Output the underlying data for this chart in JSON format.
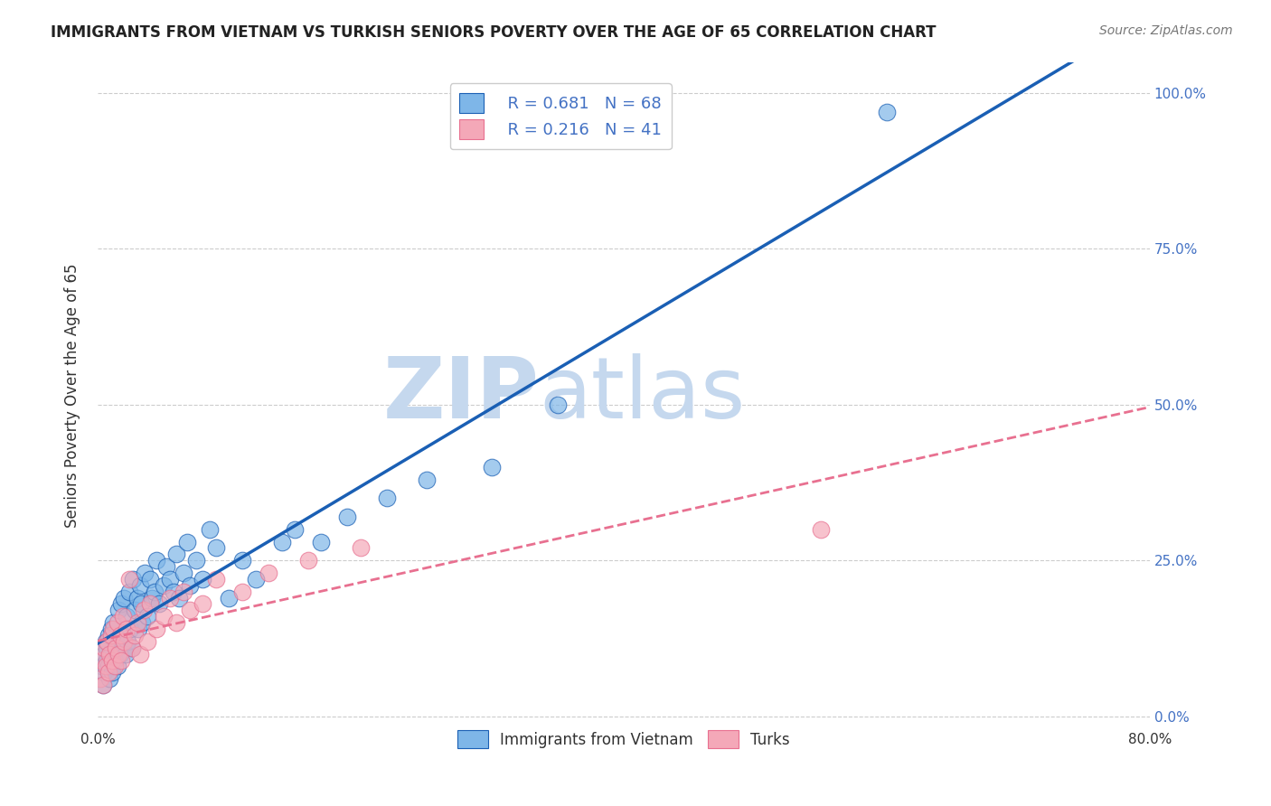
{
  "title": "IMMIGRANTS FROM VIETNAM VS TURKISH SENIORS POVERTY OVER THE AGE OF 65 CORRELATION CHART",
  "source": "Source: ZipAtlas.com",
  "ylabel": "Seniors Poverty Over the Age of 65",
  "xlim": [
    0,
    0.8
  ],
  "ylim": [
    -0.02,
    1.05
  ],
  "yticks": [
    0.0,
    0.25,
    0.5,
    0.75,
    1.0
  ],
  "ytick_labels": [
    "0.0%",
    "25.0%",
    "50.0%",
    "75.0%",
    "100.0%"
  ],
  "xticks": [
    0.0,
    0.1,
    0.2,
    0.3,
    0.4,
    0.5,
    0.6,
    0.7,
    0.8
  ],
  "vietnam_color": "#7EB6E8",
  "turks_color": "#F4A8B8",
  "vietnam_line_color": "#1A5FB4",
  "turks_line_color": "#E87090",
  "background_color": "#FFFFFF",
  "watermark_zip": "ZIP",
  "watermark_atlas": "atlas",
  "watermark_color_zip": "#C5D8EE",
  "watermark_color_atlas": "#C5D8EE",
  "right_tick_color": "#4472C4",
  "legend_r1": "R = 0.681",
  "legend_n1": "N = 68",
  "legend_r2": "R = 0.216",
  "legend_n2": "N = 41",
  "vietnam_x": [
    0.003,
    0.004,
    0.005,
    0.005,
    0.006,
    0.007,
    0.007,
    0.008,
    0.008,
    0.009,
    0.01,
    0.01,
    0.011,
    0.012,
    0.013,
    0.014,
    0.015,
    0.015,
    0.016,
    0.017,
    0.018,
    0.019,
    0.02,
    0.021,
    0.022,
    0.023,
    0.024,
    0.025,
    0.026,
    0.027,
    0.028,
    0.03,
    0.031,
    0.032,
    0.033,
    0.034,
    0.036,
    0.038,
    0.04,
    0.041,
    0.043,
    0.045,
    0.047,
    0.05,
    0.052,
    0.055,
    0.058,
    0.06,
    0.062,
    0.065,
    0.068,
    0.07,
    0.075,
    0.08,
    0.085,
    0.09,
    0.1,
    0.11,
    0.12,
    0.14,
    0.15,
    0.17,
    0.19,
    0.22,
    0.25,
    0.3,
    0.35,
    0.6
  ],
  "vietnam_y": [
    0.08,
    0.05,
    0.1,
    0.07,
    0.12,
    0.09,
    0.11,
    0.08,
    0.13,
    0.06,
    0.1,
    0.14,
    0.07,
    0.15,
    0.09,
    0.12,
    0.08,
    0.11,
    0.17,
    0.1,
    0.18,
    0.13,
    0.19,
    0.1,
    0.16,
    0.12,
    0.2,
    0.14,
    0.11,
    0.22,
    0.17,
    0.19,
    0.14,
    0.21,
    0.18,
    0.15,
    0.23,
    0.16,
    0.22,
    0.19,
    0.2,
    0.25,
    0.18,
    0.21,
    0.24,
    0.22,
    0.2,
    0.26,
    0.19,
    0.23,
    0.28,
    0.21,
    0.25,
    0.22,
    0.3,
    0.27,
    0.19,
    0.25,
    0.22,
    0.28,
    0.3,
    0.28,
    0.32,
    0.35,
    0.38,
    0.4,
    0.5,
    0.97
  ],
  "turks_x": [
    0.002,
    0.003,
    0.004,
    0.005,
    0.006,
    0.007,
    0.008,
    0.009,
    0.01,
    0.011,
    0.012,
    0.013,
    0.014,
    0.015,
    0.016,
    0.017,
    0.018,
    0.019,
    0.02,
    0.022,
    0.024,
    0.026,
    0.028,
    0.03,
    0.032,
    0.035,
    0.038,
    0.04,
    0.045,
    0.05,
    0.055,
    0.06,
    0.065,
    0.07,
    0.08,
    0.09,
    0.11,
    0.13,
    0.16,
    0.2,
    0.55
  ],
  "turks_y": [
    0.06,
    0.09,
    0.05,
    0.11,
    0.08,
    0.12,
    0.07,
    0.1,
    0.13,
    0.09,
    0.14,
    0.08,
    0.11,
    0.15,
    0.1,
    0.13,
    0.09,
    0.16,
    0.12,
    0.14,
    0.22,
    0.11,
    0.13,
    0.15,
    0.1,
    0.17,
    0.12,
    0.18,
    0.14,
    0.16,
    0.19,
    0.15,
    0.2,
    0.17,
    0.18,
    0.22,
    0.2,
    0.23,
    0.25,
    0.27,
    0.3
  ]
}
